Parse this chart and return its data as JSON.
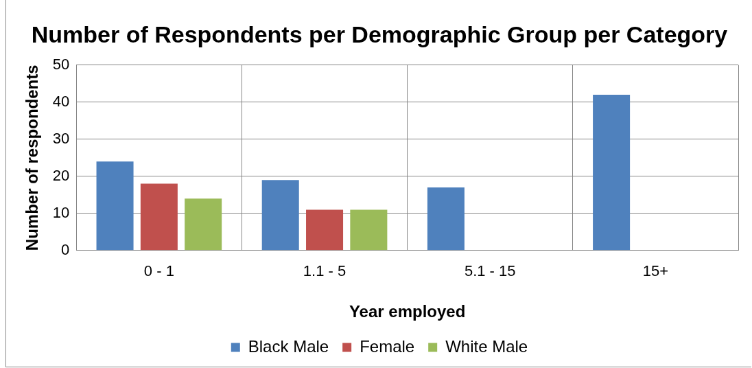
{
  "chart_data": {
    "type": "bar",
    "title": "Number of Respondents per Demographic Group per Category",
    "xlabel": "Year employed",
    "ylabel": "Number of respondents",
    "categories": [
      "0 - 1",
      "1.1 - 5",
      "5.1 - 15",
      "15+"
    ],
    "series": [
      {
        "name": "Black Male",
        "color": "#4f81bd",
        "values": [
          24,
          19,
          17,
          42
        ]
      },
      {
        "name": "Female",
        "color": "#c0504d",
        "values": [
          18,
          11,
          null,
          null
        ]
      },
      {
        "name": "White Male",
        "color": "#9bbb59",
        "values": [
          14,
          11,
          null,
          null
        ]
      }
    ],
    "ylim": [
      0,
      50
    ],
    "yticks": [
      0,
      10,
      20,
      30,
      40,
      50
    ],
    "grid": true,
    "legend": "bottom"
  }
}
